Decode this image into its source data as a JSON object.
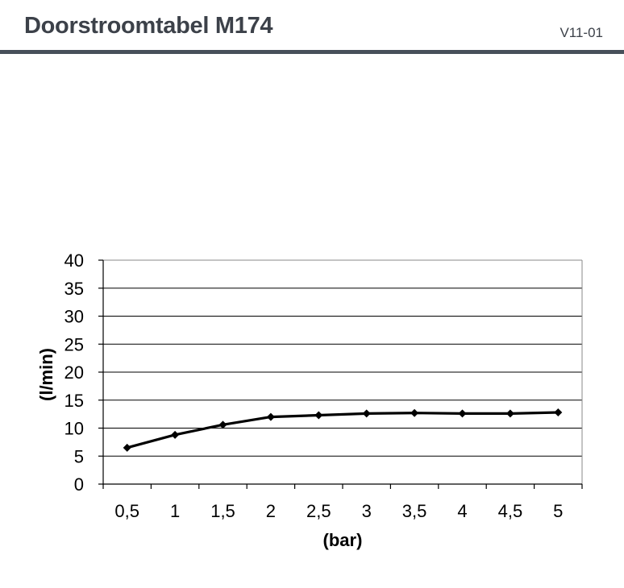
{
  "header": {
    "title": "Doorstroomtabel M174",
    "version": "V11-01"
  },
  "chart_data": {
    "type": "line",
    "title": "",
    "xlabel": "(bar)",
    "ylabel": "(l/min)",
    "categories": [
      "0,5",
      "1",
      "1,5",
      "2",
      "2,5",
      "3",
      "3,5",
      "4",
      "4,5",
      "5"
    ],
    "series": [
      {
        "values": [
          6.5,
          8.8,
          10.6,
          12.0,
          12.3,
          12.6,
          12.7,
          12.6,
          12.6,
          12.8
        ]
      }
    ],
    "ylim": [
      0,
      40
    ],
    "yticks": [
      "0",
      "5",
      "10",
      "15",
      "20",
      "25",
      "30",
      "35",
      "40"
    ],
    "grid": true,
    "legend": "none",
    "colors": {
      "line": "#000000",
      "grid": "#000000",
      "frame": "#888888"
    }
  }
}
